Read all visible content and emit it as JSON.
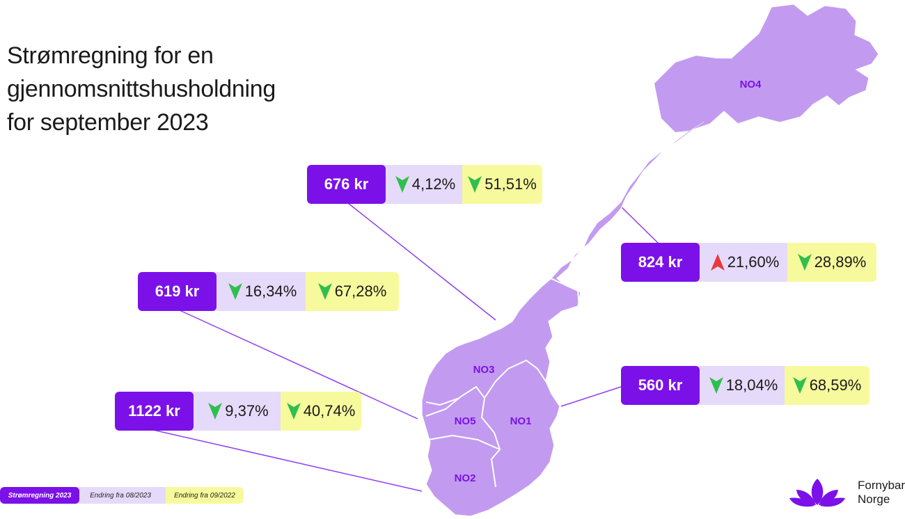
{
  "title": {
    "line1": "Strømregning for en",
    "line2": "gjennomsnittshusholdning",
    "line3": "for september 2023"
  },
  "regions": {
    "no1": "NO1",
    "no2": "NO2",
    "no3": "NO3",
    "no4": "NO4",
    "no5": "NO5"
  },
  "cards": {
    "no3": {
      "price": "676 kr",
      "monthly": "4,12%",
      "monthly_dir": "down",
      "yearly": "51,51%",
      "yearly_dir": "down"
    },
    "no4": {
      "price": "824 kr",
      "monthly": "21,60%",
      "monthly_dir": "up",
      "yearly": "28,89%",
      "yearly_dir": "down"
    },
    "no5": {
      "price": "619 kr",
      "monthly": "16,34%",
      "monthly_dir": "down",
      "yearly": "67,28%",
      "yearly_dir": "down"
    },
    "no1": {
      "price": "560 kr",
      "monthly": "18,04%",
      "monthly_dir": "down",
      "yearly": "68,59%",
      "yearly_dir": "down"
    },
    "no2": {
      "price": "1122 kr",
      "monthly": "9,37%",
      "monthly_dir": "down",
      "yearly": "40,74%",
      "yearly_dir": "down"
    }
  },
  "legend": {
    "price": "Strømregning 2023",
    "monthly": "Endring fra 08/2023",
    "yearly": "Endring fra 09/2022"
  },
  "logo": {
    "line1": "Fornybar",
    "line2": "Norge",
    "icon": "flower-icon"
  },
  "colors": {
    "price_bg": "#7b11e8",
    "monthly_bg": "#e6dafa",
    "yearly_bg": "#f7fa9c",
    "map_fill": "#c29bf0",
    "arrow_down": "#2fbf4f",
    "arrow_up": "#e8383d"
  }
}
